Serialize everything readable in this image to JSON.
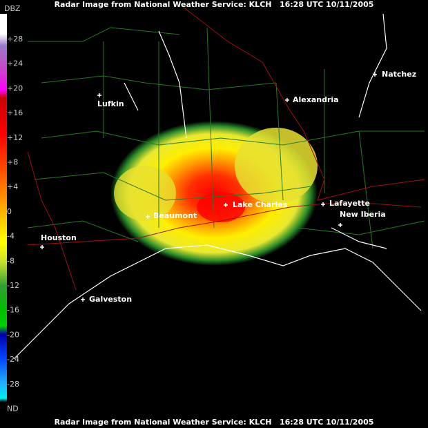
{
  "header": {
    "title": "Radar Image from National Weather Service: KLCH   16:28 UTC 10/11/2005"
  },
  "footer": {
    "title": "Radar Image from National Weather Service: KLCH   16:28 UTC 10/11/2005"
  },
  "legend": {
    "unit": "DBZ",
    "labels": [
      "+28",
      "+24",
      "+20",
      "+16",
      "+12",
      "+8",
      "+4",
      "0",
      "-4",
      "-8",
      "-12",
      "-16",
      "-20",
      "-24",
      "-28",
      "ND"
    ]
  },
  "cities": [
    {
      "label": "Natchez"
    },
    {
      "label": "Lufkin"
    },
    {
      "label": "Alexandria"
    },
    {
      "label": "Lake Charles"
    },
    {
      "label": "Lafayette"
    },
    {
      "label": "Beaumont"
    },
    {
      "label": "New Iberia"
    },
    {
      "label": "Houston"
    },
    {
      "label": "Galveston"
    }
  ]
}
